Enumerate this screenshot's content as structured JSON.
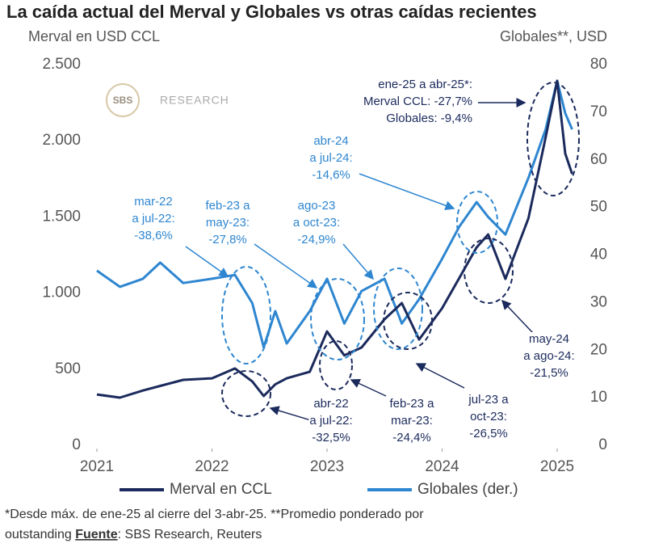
{
  "chart_data": {
    "type": "line",
    "title": "La caída actual del Merval y Globales vs otras caídas recientes",
    "y_label": "Merval en USD CCL",
    "y2_label": "Globales**, USD",
    "logo": {
      "brand": "SBS",
      "text": "RESEARCH"
    },
    "x": [
      2021.0,
      2021.2,
      2021.4,
      2021.55,
      2021.75,
      2022.0,
      2022.2,
      2022.35,
      2022.45,
      2022.55,
      2022.65,
      2022.85,
      2023.0,
      2023.15,
      2023.3,
      2023.5,
      2023.65,
      2023.8,
      2024.0,
      2024.15,
      2024.3,
      2024.4,
      2024.55,
      2024.75,
      2024.9,
      2025.0,
      2025.07,
      2025.13
    ],
    "xlim": [
      2021,
      2025.13
    ],
    "xticks": [
      2021,
      2022,
      2023,
      2024,
      2025
    ],
    "ylim": [
      0,
      2500
    ],
    "yticks": [
      0,
      500,
      {
        "value": 1000,
        "label": "1.000"
      },
      {
        "value": 1500,
        "label": "1.500"
      },
      {
        "value": 2000,
        "label": "2.000"
      },
      {
        "value": 2500,
        "label": "2.500"
      }
    ],
    "y2lim": [
      0,
      80
    ],
    "y2ticks": [
      0,
      10,
      20,
      30,
      40,
      50,
      60,
      70,
      80
    ],
    "series": [
      {
        "name": "Merval en CCL",
        "color": "#1b2a5c",
        "values": [
          334,
          313,
          360,
          390,
          430,
          440,
          505,
          420,
          324,
          400,
          440,
          483,
          748,
          590,
          642,
          828,
          934,
          695,
          900,
          1100,
          1300,
          1385,
          1093,
          1491,
          2022,
          2394,
          1916,
          1783
        ]
      },
      {
        "name": "Globales (der.)",
        "color": "#2e86d0",
        "axis": "y2",
        "values": [
          36.7,
          33.3,
          35,
          38.4,
          34.1,
          35,
          35.8,
          29.9,
          20.6,
          28.2,
          21.4,
          28.2,
          35,
          25.6,
          32.4,
          35,
          25.6,
          30.7,
          39.2,
          46,
          51.1,
          48,
          44.3,
          56.2,
          66.4,
          76.6,
          69.8,
          66.4
        ]
      }
    ],
    "annotations": [
      [
        "mar-22",
        "a jul-22:",
        "-38,6%"
      ],
      [
        "feb-23 a",
        "may-23:",
        "-27,8%"
      ],
      [
        "ago-23",
        "a oct-23:",
        "-24,9%"
      ],
      [
        "abr-24",
        "a jul-24:",
        "-14,6%"
      ],
      [
        "ene-25 a abr-25*:",
        "Merval CCL: -27,7%",
        "Globales: -9,4%"
      ],
      [
        "abr-22",
        "a jul-22:",
        "-32,5%"
      ],
      [
        "feb-23 a",
        "mar-23:",
        "-24,4%"
      ],
      [
        "jul-23 a",
        "oct-23:",
        "-26,5%"
      ],
      [
        "may-24",
        "a ago-24:",
        "-21,5%"
      ]
    ],
    "footnote": {
      "line1": "*Desde máx. de ene-25 al cierre del 3-abr-25. **Promedio ponderado por",
      "prefix": "outstanding",
      "source_label": "Fuente",
      "source": ": SBS Research, Reuters"
    }
  }
}
